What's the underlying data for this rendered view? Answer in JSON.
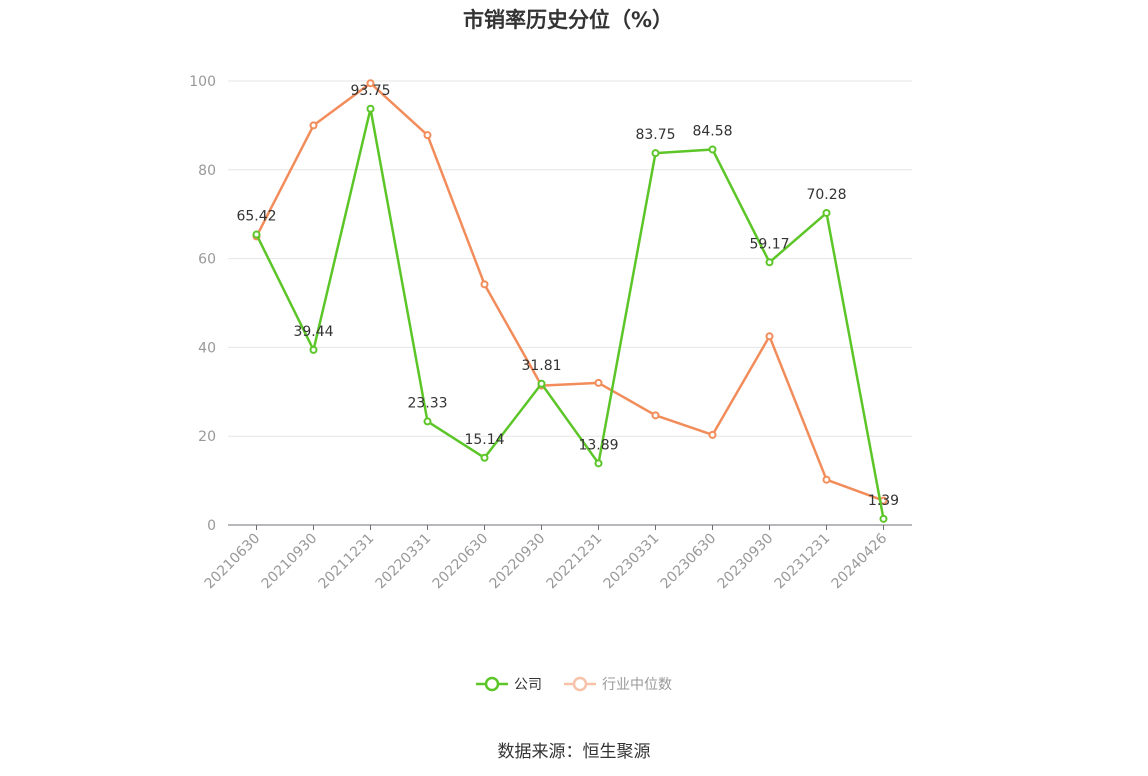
{
  "chart_data": {
    "type": "line",
    "title": "市销率历史分位（%）",
    "categories": [
      "20210630",
      "20210930",
      "20211231",
      "20220331",
      "20220630",
      "20220930",
      "20221231",
      "20230331",
      "20230630",
      "20230930",
      "20231231",
      "20240426"
    ],
    "ylim": [
      0,
      100
    ],
    "yticks": [
      0,
      20,
      40,
      60,
      80,
      100
    ],
    "grid": true,
    "legend_position": "bottom",
    "series": [
      {
        "name": "公司",
        "color": "#5cc629",
        "values": [
          65.42,
          39.44,
          93.75,
          23.33,
          15.14,
          31.81,
          13.89,
          83.75,
          84.58,
          59.17,
          70.28,
          1.39
        ],
        "labels": [
          "65.42",
          "39.44",
          "93.75",
          "23.33",
          "15.14",
          "31.81",
          "13.89",
          "83.75",
          "84.58",
          "59.17",
          "70.28",
          "1.39"
        ]
      },
      {
        "name": "行业中位数",
        "color": "#f28c5a",
        "values": [
          65.0,
          90.0,
          99.5,
          87.8,
          54.2,
          31.4,
          32.0,
          24.7,
          20.3,
          42.5,
          10.2,
          5.5
        ]
      }
    ]
  },
  "legend": {
    "company_label": "公司",
    "industry_label": "行业中位数"
  },
  "source_text": "数据来源：恒生聚源"
}
